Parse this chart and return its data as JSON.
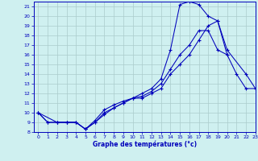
{
  "title": "Graphe des températures (°c)",
  "bg_color": "#cff0f0",
  "grid_color": "#aacccc",
  "line_color": "#0000bb",
  "xlim": [
    -0.5,
    23
  ],
  "ylim": [
    8,
    21.5
  ],
  "yticks": [
    8,
    9,
    10,
    11,
    12,
    13,
    14,
    15,
    16,
    17,
    18,
    19,
    20,
    21
  ],
  "xticks": [
    0,
    1,
    2,
    3,
    4,
    5,
    6,
    7,
    8,
    9,
    10,
    11,
    12,
    13,
    14,
    15,
    16,
    17,
    18,
    19,
    20,
    21,
    22,
    23
  ],
  "curve1_x": [
    0,
    1,
    2,
    3,
    4,
    5,
    6,
    7,
    8,
    9,
    10,
    11,
    12,
    13,
    14,
    15,
    16,
    17,
    18,
    19,
    20,
    21,
    22,
    23
  ],
  "curve1_y": [
    10,
    9,
    9,
    9,
    9,
    8.3,
    9,
    10,
    10.5,
    11,
    11.5,
    12,
    12.5,
    13.5,
    16.5,
    21.2,
    21.5,
    21.2,
    20,
    19.5,
    16,
    null,
    null,
    null
  ],
  "curve2_x": [
    0,
    1,
    2,
    3,
    4,
    5,
    6,
    7,
    8,
    9,
    10,
    11,
    12,
    13,
    14,
    15,
    16,
    17,
    18,
    19,
    20,
    21,
    22,
    23
  ],
  "curve2_y": [
    10,
    9,
    9,
    9,
    9,
    8.3,
    9.2,
    10.3,
    10.8,
    11.2,
    11.5,
    11.7,
    12.2,
    13,
    14.5,
    16,
    17,
    18.5,
    18.5,
    16.5,
    16,
    14,
    12.5,
    12.5
  ],
  "curve3_x": [
    0,
    2,
    3,
    4,
    5,
    6,
    7,
    8,
    9,
    10,
    11,
    12,
    13,
    14,
    15,
    16,
    17,
    18,
    19,
    20,
    22,
    23
  ],
  "curve3_y": [
    10,
    9,
    9,
    9,
    8.3,
    9,
    9.8,
    10.5,
    11,
    11.5,
    11.5,
    12,
    12.5,
    14,
    15,
    16,
    17.5,
    19,
    19.5,
    16.5,
    14,
    12.5
  ]
}
